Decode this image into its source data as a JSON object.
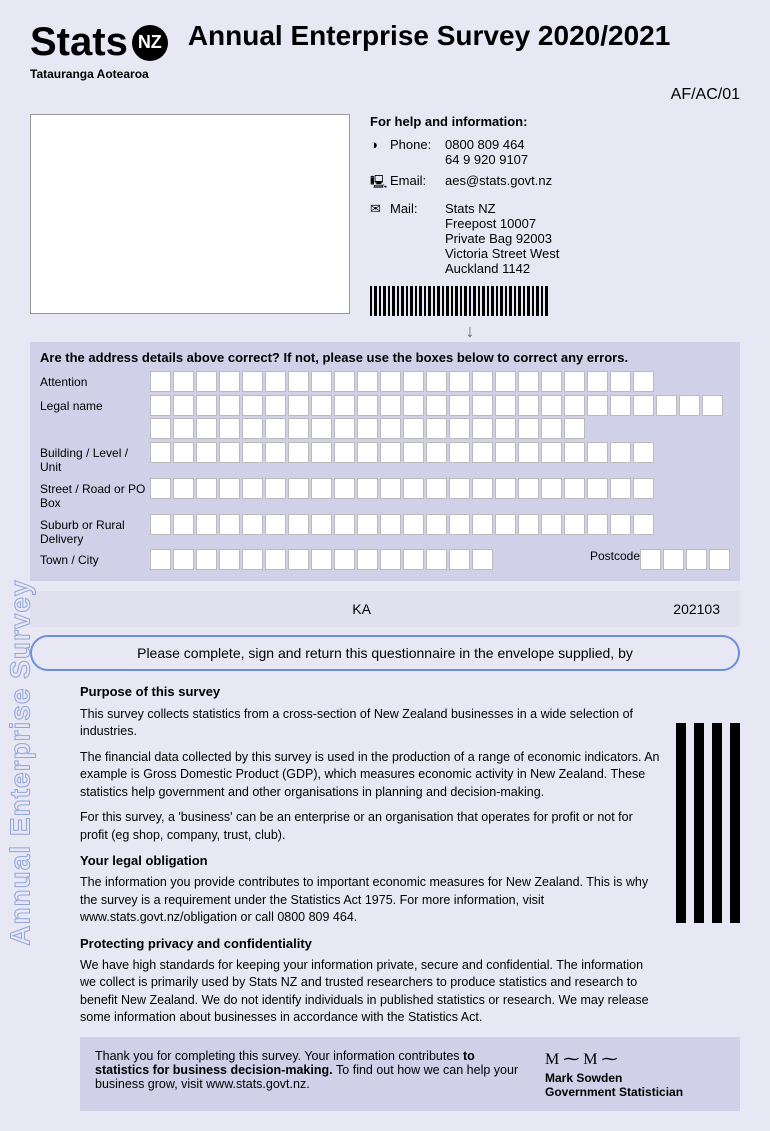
{
  "logo": {
    "brand": "Stats",
    "badge": "NZ",
    "sub": "Tatauranga Aotearoa"
  },
  "title": "Annual Enterprise Survey 2020/2021",
  "form_code": "AF/AC/01",
  "help": {
    "title": "For help and information:",
    "phone_label": "Phone:",
    "phone": "0800 809 464\n64 9 920 9107",
    "email_label": "Email:",
    "email": "aes@stats.govt.nz",
    "mail_label": "Mail:",
    "mail": "Stats NZ\nFreepost 10007\nPrivate Bag 92003\nVictoria Street West\nAuckland 1142"
  },
  "address_form": {
    "title": "Are the address details above correct? If not, please use the boxes below to correct any errors.",
    "rows": [
      {
        "label": "Attention",
        "cols": 22
      },
      {
        "label": "Legal name",
        "cols": 44
      },
      {
        "label": "Building / Level / Unit",
        "cols": 22
      },
      {
        "label": "Street / Road or PO Box",
        "cols": 22
      },
      {
        "label": "Suburb or Rural Delivery",
        "cols": 22
      }
    ],
    "town_label": "Town / City",
    "postcode_label": "Postcode"
  },
  "codes": {
    "code1": "KA",
    "code2": "202103"
  },
  "return_msg": "Please complete, sign and return this questionnaire in the envelope supplied, by",
  "side_label": "Annual Enterprise Survey",
  "purpose": {
    "h": "Purpose of this survey",
    "p1": "This survey collects statistics from a cross-section of New Zealand businesses in a wide selection of industries.",
    "p2": "The financial data collected by this survey is used in the production of a range of economic indicators. An example is Gross Domestic Product (GDP), which measures economic activity in New Zealand. These statistics help government and other organisations in planning and decision-making.",
    "p3": "For this survey, a 'business' can be an enterprise or an organisation that operates for profit or not for profit (eg shop, company, trust, club)."
  },
  "legal": {
    "h": "Your legal obligation",
    "p": "The information you provide contributes to important economic measures for New Zealand. This is why the survey is a requirement under the Statistics Act 1975. For more information, visit www.stats.govt.nz/obligation or call 0800 809 464."
  },
  "privacy": {
    "h": "Protecting privacy and confidentiality",
    "p": "We have high standards for keeping your information private, secure and confidential. The information we collect is primarily used by Stats NZ and trusted researchers to produce statistics and research to benefit New Zealand. We do not identify individuals in published statistics or research. We may release some information about businesses in accordance with the Statistics Act."
  },
  "thanks": {
    "t1": "Thank you for completing this survey. Your information contributes ",
    "t2": "to statistics for business decision-making. ",
    "t3": "To find out how we can help your business grow, visit www.stats.govt.nz.",
    "sig_name": "Mark Sowden",
    "sig_title": "Government Statistician"
  }
}
